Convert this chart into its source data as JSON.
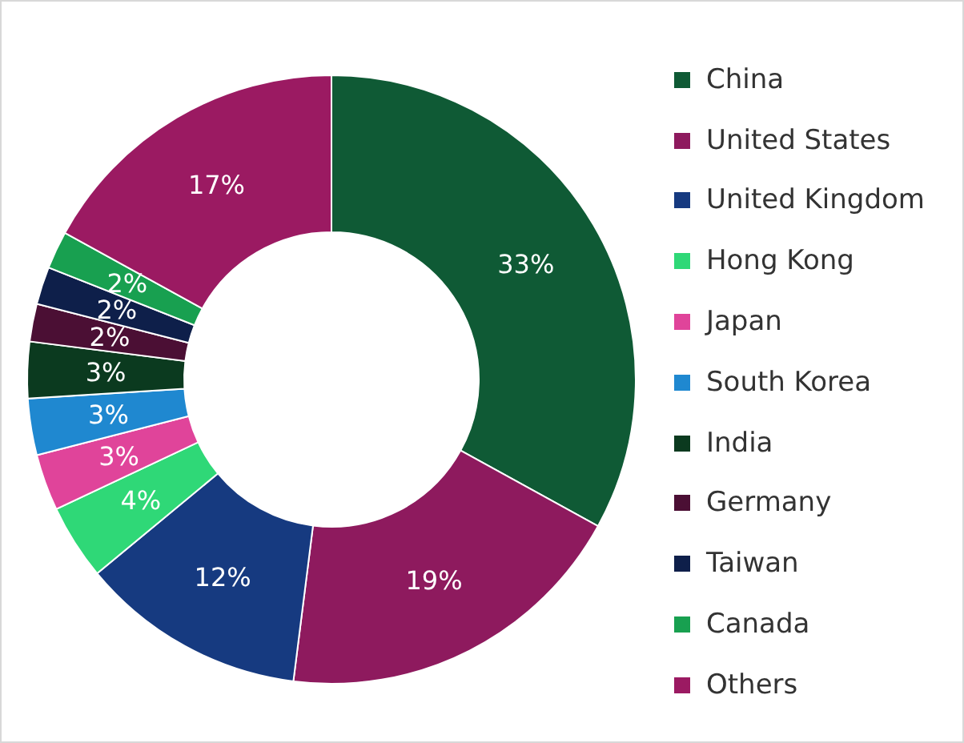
{
  "chart_data": {
    "type": "donut",
    "categories": [
      "China",
      "United States",
      "United Kingdom",
      "Hong Kong",
      "Japan",
      "South Korea",
      "India",
      "Germany",
      "Taiwan",
      "Canada",
      "Others"
    ],
    "values": [
      33,
      19,
      12,
      4,
      3,
      3,
      3,
      2,
      2,
      2,
      17
    ],
    "colors": [
      "#0f5a35",
      "#8e1a5e",
      "#163a80",
      "#2fd877",
      "#e0449a",
      "#1f88d0",
      "#0b3a1f",
      "#4b0f34",
      "#0e1f4a",
      "#18a050",
      "#9b1a62"
    ],
    "value_labels": [
      "33%",
      "19%",
      "12%",
      "4%",
      "3%",
      "3%",
      "3%",
      "2%",
      "2%",
      "2%",
      "17%"
    ],
    "legend": "right"
  }
}
